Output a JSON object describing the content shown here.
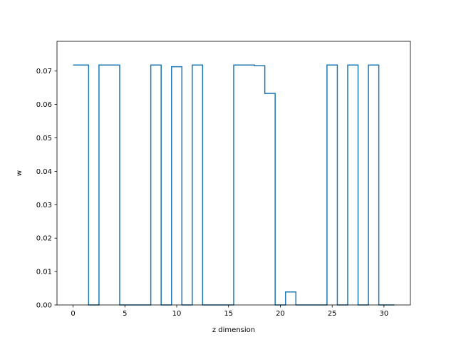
{
  "chart_data": {
    "type": "line",
    "drawstyle": "steps-mid",
    "xlabel": "z dimension",
    "ylabel": "w",
    "xlim": [
      -1.55,
      32.55
    ],
    "ylim": [
      0.0,
      0.0789
    ],
    "xticks": [
      0,
      5,
      10,
      15,
      20,
      25,
      30
    ],
    "yticks": [
      0.0,
      0.01,
      0.02,
      0.03,
      0.04,
      0.05,
      0.06,
      0.07
    ],
    "ytick_labels": [
      "0.00",
      "0.01",
      "0.02",
      "0.03",
      "0.04",
      "0.05",
      "0.06",
      "0.07"
    ],
    "grid": false,
    "line_color": "#1f77b4",
    "series": [
      {
        "x": [
          0,
          1,
          2,
          3,
          4,
          5,
          6,
          7,
          8,
          9,
          10,
          11,
          12,
          13,
          14,
          15,
          16,
          17,
          18,
          19,
          20,
          21,
          22,
          23,
          24,
          25,
          26,
          27,
          28,
          29,
          30,
          31
        ],
        "values": [
          0.0718,
          0.0718,
          0.0,
          0.0718,
          0.0718,
          0.0,
          0.0,
          0.0,
          0.0718,
          0.0,
          0.0713,
          0.0,
          0.0718,
          0.0,
          0.0,
          0.0,
          0.0718,
          0.0718,
          0.0716,
          0.0633,
          0.0,
          0.0039,
          0.0,
          0.0,
          0.0,
          0.0718,
          0.0,
          0.0718,
          0.0,
          0.0718,
          0.0,
          0.0
        ]
      }
    ]
  }
}
